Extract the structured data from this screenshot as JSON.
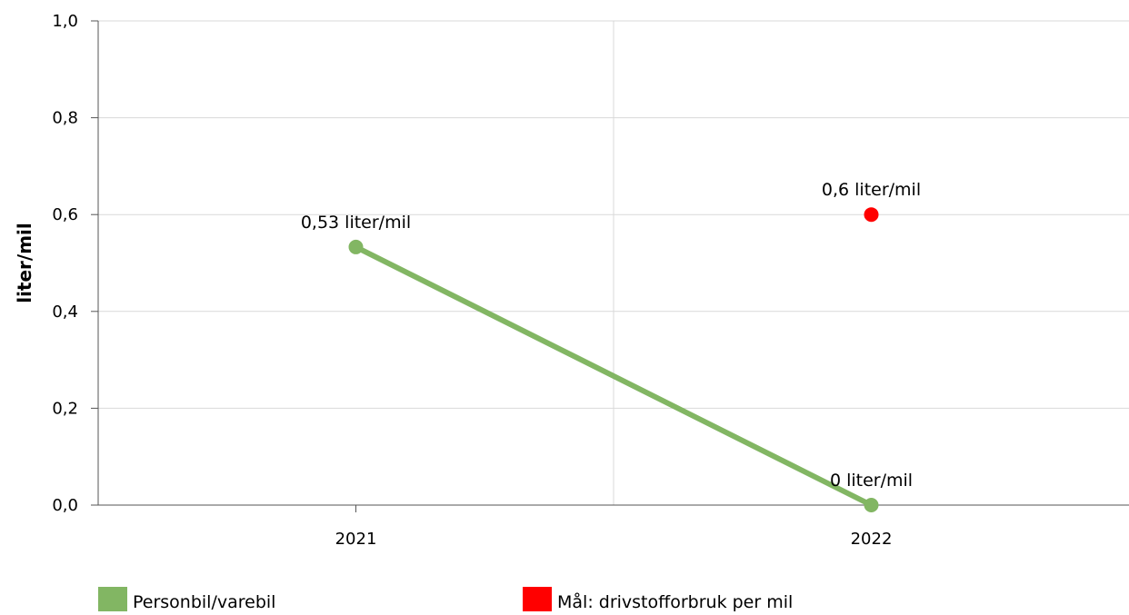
{
  "chart_data": {
    "type": "line",
    "title": "",
    "xlabel": "",
    "ylabel": "liter/mil",
    "categories": [
      "2021",
      "2022"
    ],
    "ylim": [
      0,
      1
    ],
    "yticks": [
      "0,0",
      "0,2",
      "0,4",
      "0,6",
      "0,8",
      "1,0"
    ],
    "ytick_values": [
      0,
      0.2,
      0.4,
      0.6,
      0.8,
      1.0
    ],
    "grid": true,
    "legend_position": "bottom",
    "series": [
      {
        "name": "Personbil/varebil",
        "type": "line",
        "color": "#82b663",
        "values": [
          0.533,
          0
        ],
        "labels": [
          "0,53 liter/mil",
          "0 liter/mil"
        ]
      },
      {
        "name": "Mål: drivstofforbruk per mil",
        "type": "scatter",
        "color": "#ff0000",
        "values": [
          null,
          0.6
        ],
        "labels": [
          null,
          "0,6 liter/mil"
        ]
      }
    ]
  }
}
